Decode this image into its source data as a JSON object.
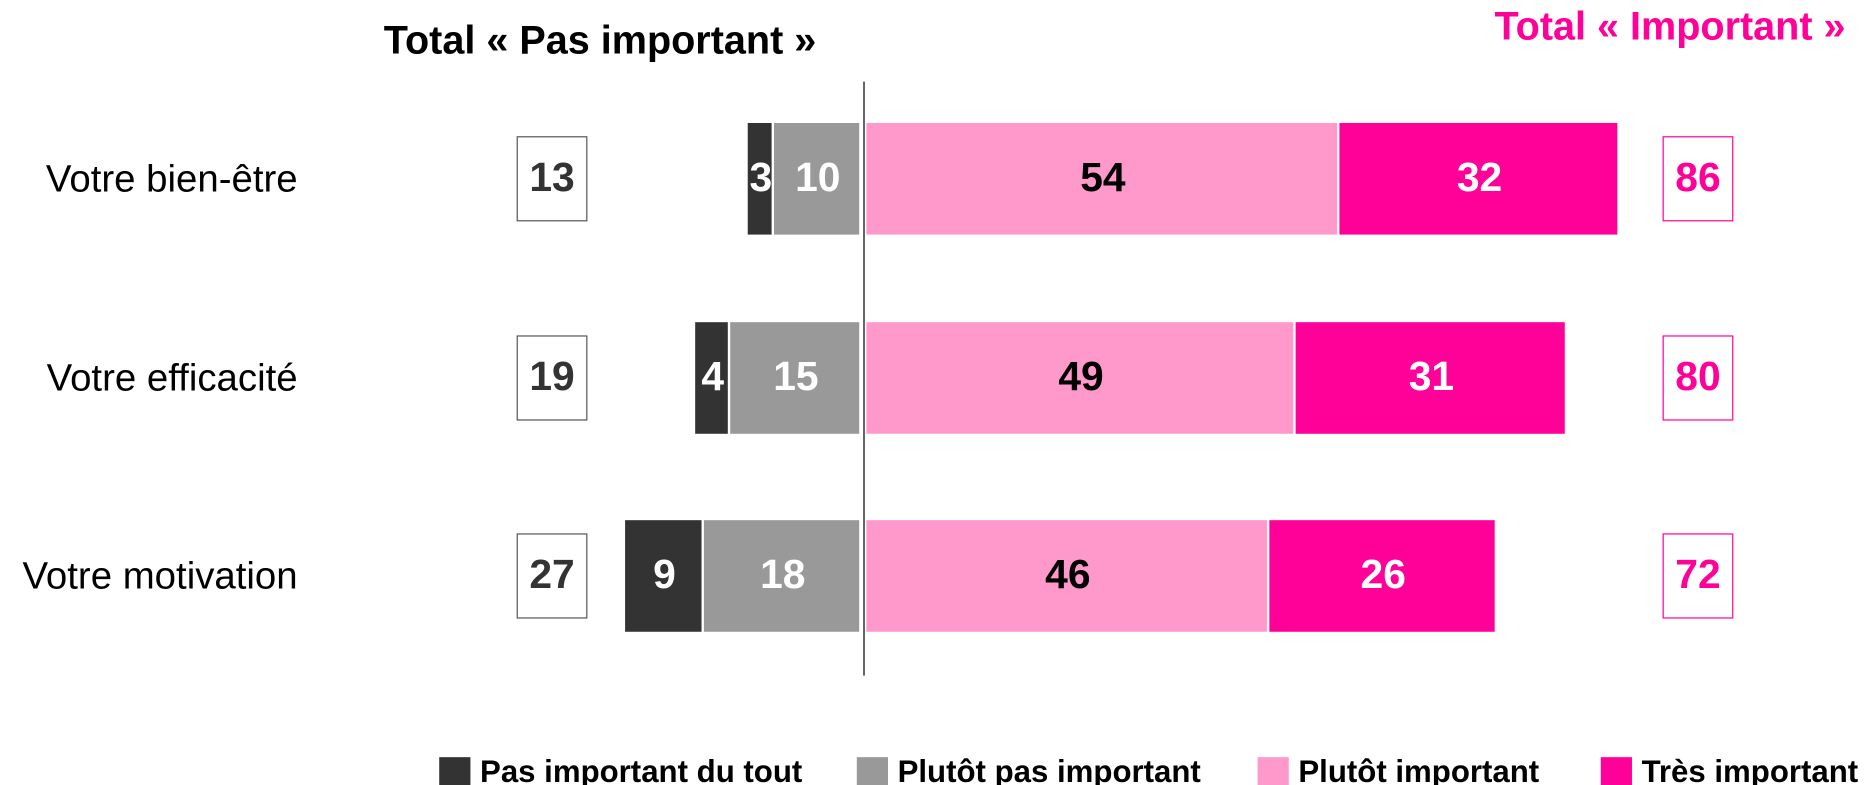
{
  "chart_data": {
    "type": "bar",
    "stacking": "diverging",
    "categories": [
      "Votre bien-être",
      "Votre efficacité",
      "Votre motivation"
    ],
    "series": [
      {
        "name": "Pas important du tout",
        "color": "#333333",
        "side": "left",
        "values": [
          3,
          4,
          9
        ]
      },
      {
        "name": "Plutôt pas important",
        "color": "#999999",
        "side": "left",
        "values": [
          10,
          15,
          18
        ]
      },
      {
        "name": "Plutôt important",
        "color": "#ff99cc",
        "side": "right",
        "values": [
          54,
          49,
          46
        ]
      },
      {
        "name": "Très important",
        "color": "#ff0099",
        "side": "right",
        "values": [
          32,
          31,
          26
        ]
      }
    ],
    "total_left": {
      "title": "Total « Pas important »",
      "color": "#000000",
      "values": [
        13,
        19,
        27
      ]
    },
    "total_right": {
      "title": "Total « Important »",
      "color": "#ff0099",
      "values": [
        86,
        80,
        72
      ]
    },
    "legend": "bottom"
  }
}
